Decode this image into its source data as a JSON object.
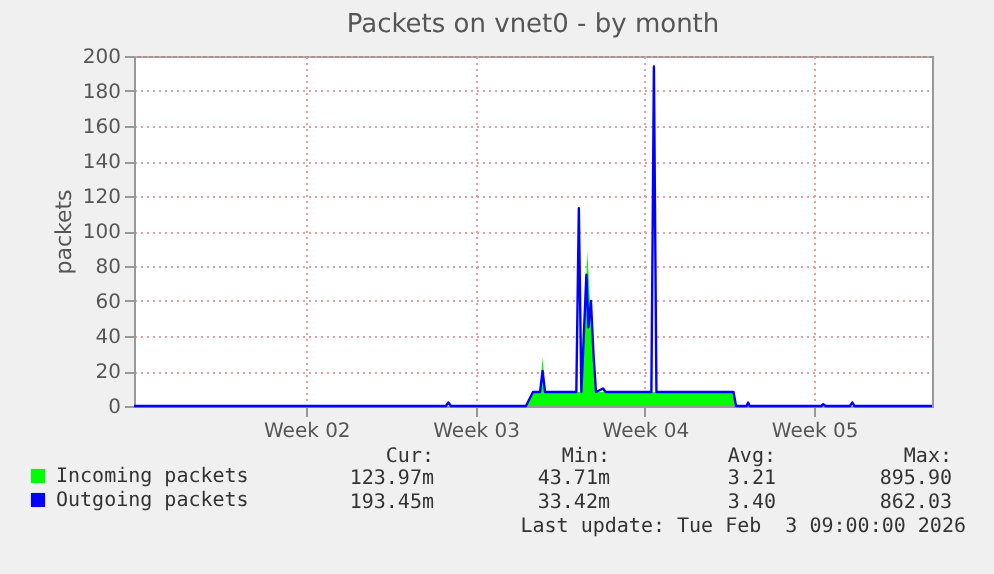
{
  "chart_data": {
    "type": "area",
    "title": "Packets on vnet0 - by month",
    "ylabel": "packets",
    "xlim": [
      "2026-01-01T09:00",
      "2026-02-03T09:00"
    ],
    "xticks": [
      {
        "value": "2026-01-08T12:00",
        "label": "Week 02"
      },
      {
        "value": "2026-01-15T12:00",
        "label": "Week 03"
      },
      {
        "value": "2026-01-22T12:00",
        "label": "Week 04"
      },
      {
        "value": "2026-01-29T12:00",
        "label": "Week 05"
      }
    ],
    "ylim": [
      0,
      200
    ],
    "yticks": [
      0,
      20,
      40,
      60,
      80,
      100,
      120,
      140,
      160,
      180,
      200
    ],
    "grid": true,
    "legend": "bottom left",
    "series": [
      {
        "name": "Incoming packets",
        "type": "area",
        "color": "#00ff00",
        "x": [
          "2026-01-01T09:00",
          "2026-01-17T14:00",
          "2026-01-17T21:00",
          "2026-01-18T04:00",
          "2026-01-18T06:30",
          "2026-01-18T09:00",
          "2026-01-19T21:00",
          "2026-01-19T23:30",
          "2026-01-20T03:00",
          "2026-01-20T05:30",
          "2026-01-20T08:00",
          "2026-01-20T11:30",
          "2026-01-26T04:00",
          "2026-01-26T06:30",
          "2026-02-03T09:00"
        ],
        "values": [
          0,
          0,
          8,
          8,
          28,
          8,
          8,
          40,
          88,
          60,
          40,
          8,
          8,
          0,
          0
        ]
      },
      {
        "name": "Outgoing packets",
        "type": "line",
        "color": "#0000ff",
        "x": [
          "2026-01-01T09:00",
          "2026-01-14T06:30",
          "2026-01-14T09:00",
          "2026-01-14T11:30",
          "2026-01-17T14:00",
          "2026-01-17T21:00",
          "2026-01-18T04:00",
          "2026-01-18T06:30",
          "2026-01-18T09:00",
          "2026-01-19T16:00",
          "2026-01-19T18:30",
          "2026-01-19T21:00",
          "2026-01-20T02:00",
          "2026-01-20T04:00",
          "2026-01-20T06:30",
          "2026-01-20T09:00",
          "2026-01-20T11:30",
          "2026-01-20T18:30",
          "2026-01-20T21:00",
          "2026-01-22T18:30",
          "2026-01-22T21:00",
          "2026-01-22T23:30",
          "2026-01-26T04:00",
          "2026-01-26T06:30",
          "2026-01-26T17:00",
          "2026-01-26T18:30",
          "2026-01-26T20:00",
          "2026-01-29T19:00",
          "2026-01-29T21:00",
          "2026-01-29T23:30",
          "2026-01-30T23:30",
          "2026-01-31T02:00",
          "2026-01-31T04:00",
          "2026-02-03T09:00"
        ],
        "values": [
          0,
          0,
          2,
          0,
          0,
          8,
          8,
          20,
          8,
          8,
          113,
          8,
          75,
          45,
          60,
          30,
          8,
          10,
          8,
          8,
          194,
          8,
          8,
          0,
          0,
          2,
          0,
          0,
          1,
          0,
          0,
          2,
          0,
          0
        ]
      }
    ],
    "annotations": [
      "Cur:",
      "Min:",
      "Avg:",
      "Max:",
      "123.97m",
      "43.71m",
      "3.21",
      "895.90",
      "193.45m",
      "33.42m",
      "3.40",
      "862.03",
      "Last update: Tue Feb  3 09:00:00 2026"
    ]
  }
}
